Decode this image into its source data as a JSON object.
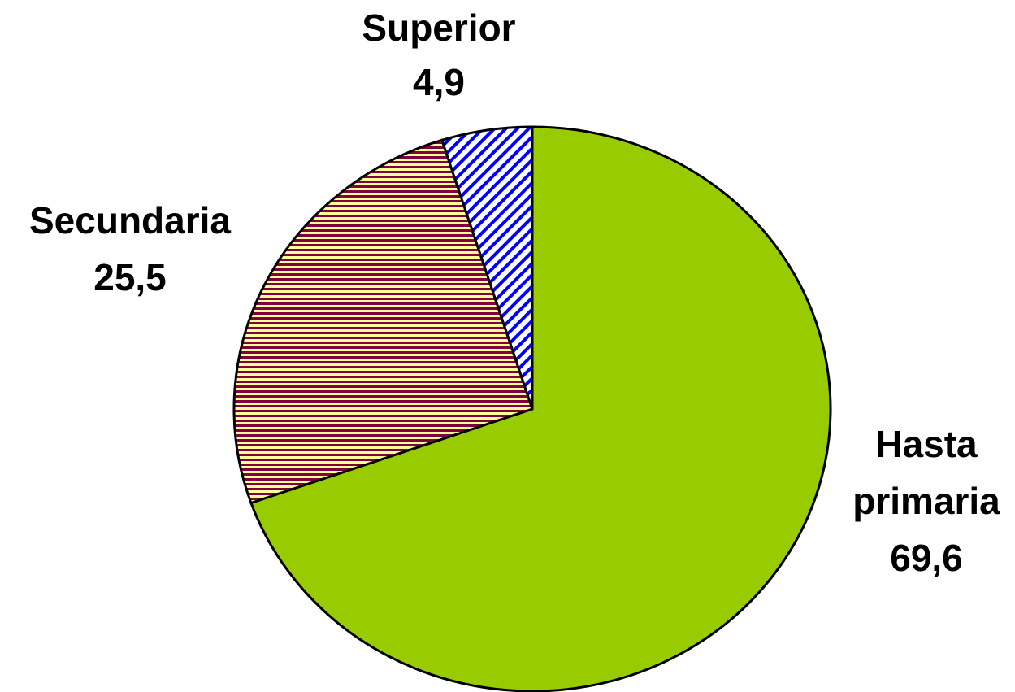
{
  "chart_data": {
    "type": "pie",
    "categories": [
      "Hasta primaria",
      "Secundaria",
      "Superior"
    ],
    "values": [
      69.6,
      25.5,
      4.9
    ],
    "value_labels": [
      "69,6",
      "25,5",
      "4,9"
    ],
    "colors": [
      "#99cc00",
      "#800040",
      "#0000ff"
    ]
  }
}
